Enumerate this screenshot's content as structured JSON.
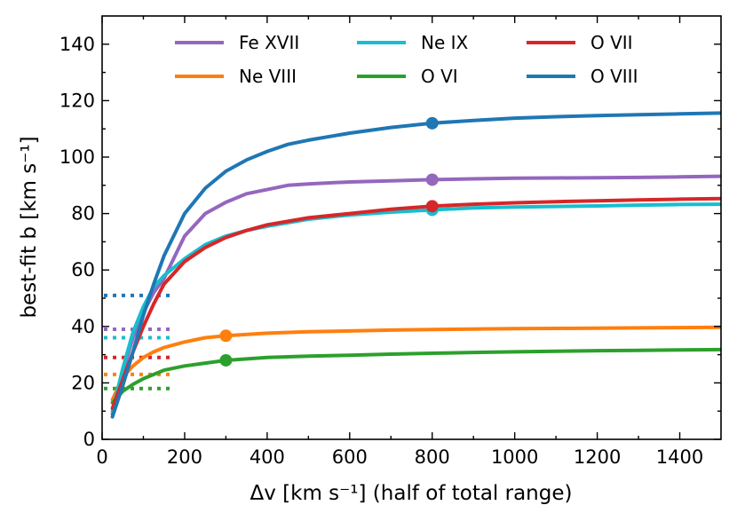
{
  "chart_data": {
    "type": "line",
    "title": "",
    "xlabel": "Δv [km s⁻¹] (half of total range)",
    "ylabel": "best-fit b [km s⁻¹]",
    "xlim": [
      0,
      1500
    ],
    "ylim": [
      0,
      150
    ],
    "xticks": [
      0,
      200,
      400,
      600,
      800,
      1000,
      1200,
      1400
    ],
    "yticks": [
      0,
      20,
      40,
      60,
      80,
      100,
      120,
      140
    ],
    "grid": false,
    "legend_position": "top",
    "series": [
      {
        "name": "Fe XVII",
        "color": "#9467bd",
        "x": [
          25,
          50,
          75,
          100,
          125,
          150,
          200,
          250,
          300,
          350,
          400,
          450,
          500,
          600,
          700,
          800,
          900,
          1000,
          1100,
          1200,
          1300,
          1400,
          1500
        ],
        "y": [
          9,
          24,
          36,
          45,
          52,
          57,
          72,
          80,
          84,
          87,
          88.5,
          90,
          90.5,
          91.2,
          91.6,
          92,
          92.3,
          92.5,
          92.6,
          92.7,
          92.8,
          93,
          93.2
        ],
        "marker": {
          "x": 800,
          "y": 92
        },
        "reference": {
          "y": 39,
          "x_end": 170
        }
      },
      {
        "name": "Ne VIII",
        "color": "#ff7f0e",
        "x": [
          25,
          50,
          75,
          100,
          125,
          150,
          200,
          250,
          300,
          400,
          500,
          600,
          700,
          800,
          900,
          1000,
          1100,
          1200,
          1300,
          1400,
          1500
        ],
        "y": [
          14,
          22,
          26,
          29,
          31,
          32.5,
          34.5,
          36,
          36.7,
          37.6,
          38.1,
          38.4,
          38.7,
          38.9,
          39.1,
          39.2,
          39.3,
          39.4,
          39.5,
          39.6,
          39.7
        ],
        "marker": {
          "x": 300,
          "y": 36.7
        },
        "reference": {
          "y": 23,
          "x_end": 170
        }
      },
      {
        "name": "Ne IX",
        "color": "#17becf",
        "x": [
          25,
          50,
          75,
          100,
          125,
          150,
          200,
          250,
          300,
          350,
          400,
          500,
          600,
          700,
          800,
          900,
          1000,
          1100,
          1200,
          1300,
          1400,
          1500
        ],
        "y": [
          10,
          25,
          38,
          47,
          54,
          58,
          64,
          69,
          72,
          74,
          75.5,
          78,
          79.5,
          80.5,
          81.3,
          82,
          82.3,
          82.5,
          82.7,
          83,
          83.2,
          83.3
        ],
        "marker": {
          "x": 800,
          "y": 81.3
        },
        "reference": {
          "y": 36,
          "x_end": 170
        }
      },
      {
        "name": "O VI",
        "color": "#2ca02c",
        "x": [
          25,
          50,
          75,
          100,
          125,
          150,
          200,
          250,
          300,
          400,
          500,
          600,
          700,
          800,
          900,
          1000,
          1100,
          1200,
          1300,
          1400,
          1500
        ],
        "y": [
          13,
          17,
          19.5,
          21.5,
          23,
          24.5,
          26,
          27,
          28,
          29,
          29.5,
          29.8,
          30.2,
          30.5,
          30.8,
          31,
          31.2,
          31.4,
          31.5,
          31.7,
          31.8
        ],
        "marker": {
          "x": 300,
          "y": 28
        },
        "reference": {
          "y": 18,
          "x_end": 170
        }
      },
      {
        "name": "O VII",
        "color": "#d62728",
        "x": [
          25,
          50,
          75,
          100,
          125,
          150,
          200,
          250,
          300,
          350,
          400,
          500,
          600,
          700,
          800,
          900,
          1000,
          1100,
          1200,
          1300,
          1400,
          1500
        ],
        "y": [
          11,
          21,
          31,
          40,
          48,
          55,
          63,
          68,
          71.5,
          74,
          76,
          78.5,
          80,
          81.5,
          82.6,
          83.3,
          83.8,
          84.2,
          84.5,
          84.8,
          85.1,
          85.3
        ],
        "marker": {
          "x": 800,
          "y": 82.6
        },
        "reference": {
          "y": 29,
          "x_end": 170
        }
      },
      {
        "name": "O VIII",
        "color": "#1f77b4",
        "x": [
          25,
          50,
          75,
          100,
          125,
          150,
          200,
          250,
          300,
          350,
          400,
          450,
          500,
          600,
          700,
          800,
          900,
          1000,
          1100,
          1200,
          1300,
          1400,
          1500
        ],
        "y": [
          8,
          19,
          31,
          44,
          55,
          65,
          80,
          89,
          95,
          99,
          102,
          104.5,
          106,
          108.5,
          110.5,
          112,
          113,
          113.8,
          114.3,
          114.7,
          115,
          115.3,
          115.6
        ],
        "marker": {
          "x": 800,
          "y": 112
        },
        "reference": {
          "y": 51,
          "x_end": 170
        }
      }
    ]
  }
}
